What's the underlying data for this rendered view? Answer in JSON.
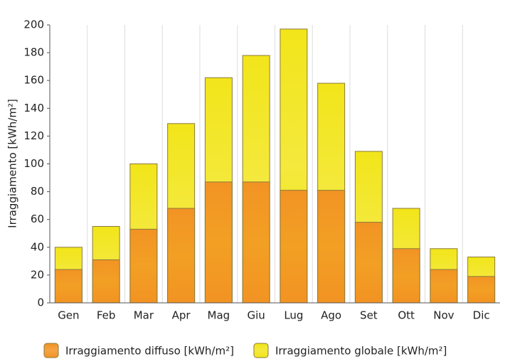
{
  "chart_data": {
    "type": "bar",
    "y_label": "Irraggiamento [kWh/m²]",
    "categories": [
      "Gen",
      "Feb",
      "Mar",
      "Apr",
      "Mag",
      "Giu",
      "Lug",
      "Ago",
      "Set",
      "Ott",
      "Nov",
      "Dic"
    ],
    "series": [
      {
        "name": "Irraggiamento diffuso [kWh/m²]",
        "color": "#f29323",
        "values": [
          24,
          31,
          53,
          68,
          87,
          87,
          81,
          81,
          58,
          39,
          24,
          19
        ]
      },
      {
        "name": "Irraggiamento globale [kWh/m²]",
        "color": "#f2e51a",
        "values": [
          40,
          55,
          100,
          129,
          162,
          178,
          197,
          158,
          109,
          68,
          39,
          33
        ]
      }
    ],
    "ylim": [
      0,
      200
    ],
    "yticks": [
      0,
      20,
      40,
      60,
      80,
      100,
      120,
      140,
      160,
      180,
      200
    ],
    "grid": false
  }
}
